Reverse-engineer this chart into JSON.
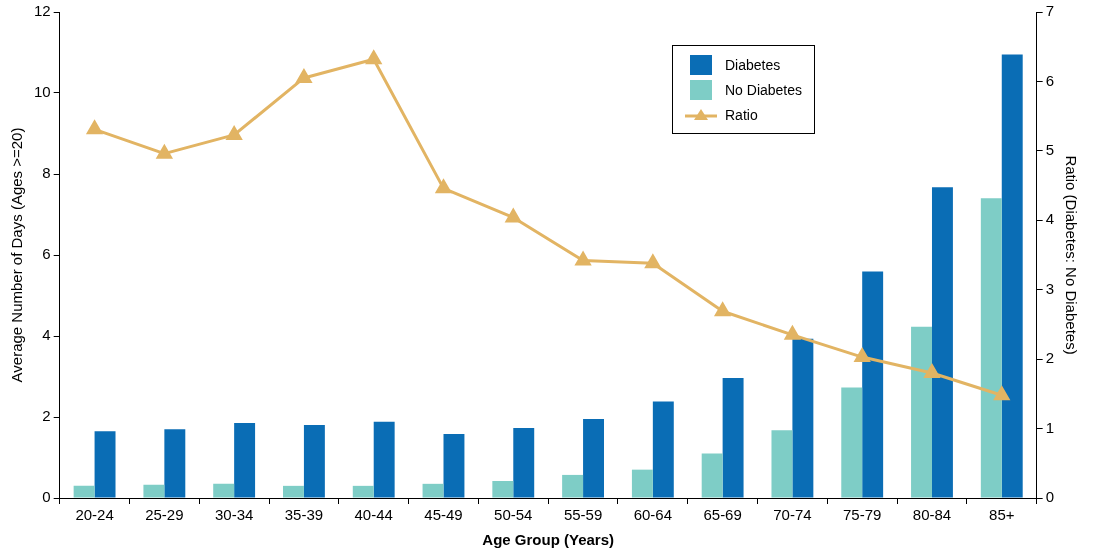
{
  "chart_data": {
    "type": "bar",
    "xlabel": "Age Group (Years)",
    "ylabel": "Average Number of Days (Ages >=20)",
    "y2label": "Ratio (Diabetes: No Diabetes)",
    "categories": [
      "20-24",
      "25-29",
      "30-34",
      "35-39",
      "40-44",
      "45-49",
      "50-54",
      "55-59",
      "60-64",
      "65-69",
      "70-74",
      "75-79",
      "80-84",
      "85+"
    ],
    "series": [
      {
        "name": "Diabetes",
        "color": "#0a6db5",
        "values": [
          1.65,
          1.7,
          1.85,
          1.8,
          1.88,
          1.58,
          1.73,
          1.95,
          2.38,
          2.96,
          3.93,
          5.59,
          7.67,
          10.95
        ]
      },
      {
        "name": "No Diabetes",
        "color": "#7ecdc6",
        "values": [
          0.3,
          0.33,
          0.35,
          0.3,
          0.3,
          0.35,
          0.42,
          0.57,
          0.7,
          1.1,
          1.67,
          2.73,
          4.23,
          7.4
        ]
      },
      {
        "name": "Ratio",
        "type": "line",
        "axis": "y2",
        "color": "#e2b463",
        "values": [
          5.31,
          4.96,
          5.23,
          6.05,
          6.32,
          4.46,
          4.04,
          3.42,
          3.38,
          2.69,
          2.35,
          2.03,
          1.8,
          1.48
        ]
      }
    ],
    "ylim": [
      0,
      12
    ],
    "yticks": [
      0,
      2,
      4,
      6,
      8,
      10,
      12
    ],
    "y2lim": [
      0,
      7
    ],
    "y2ticks": [
      0,
      1,
      2,
      3,
      4,
      5,
      6,
      7
    ],
    "grid": false,
    "legend": "top right",
    "marker": "triangle",
    "line_style": "solid"
  }
}
